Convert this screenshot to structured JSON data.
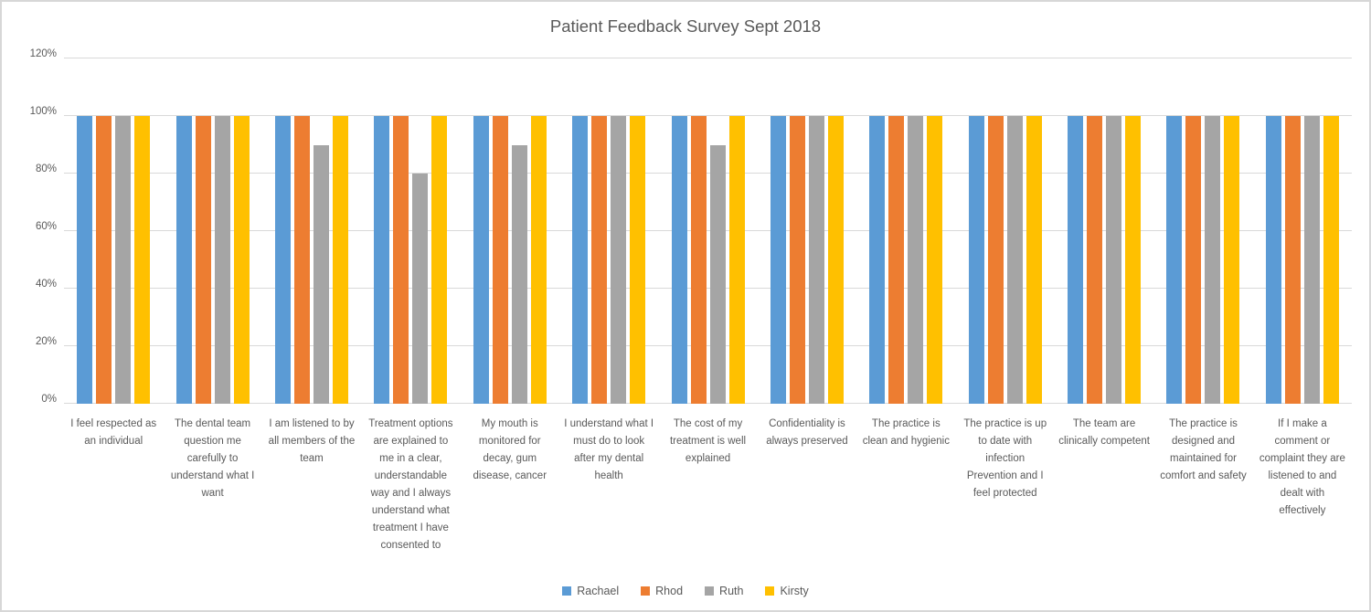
{
  "title": "Patient Feedback Survey Sept 2018",
  "colors": {
    "text": "#595959",
    "gridline": "#d9d9d9",
    "border": "#d7d7d7",
    "background": "#ffffff"
  },
  "chart_data": {
    "type": "bar",
    "title": "Patient Feedback Survey Sept 2018",
    "categories": [
      "I feel respected as an individual",
      "The dental team question me carefully to understand what I want",
      "I am listened to by all members of the team",
      "Treatment options are explained to me in a clear, understandable way and I always understand what treatment I have consented to",
      "My mouth is monitored for decay, gum disease, cancer",
      "I understand what I must do to look after my dental health",
      "The cost of my treatment is well explained",
      "Confidentiality is always preserved",
      "The practice is clean and hygienic",
      "The practice is up to date with infection Prevention and I feel protected",
      "The team are clinically competent",
      "The practice is designed and maintained for comfort and safety",
      "If I make a comment or complaint they are listened to and dealt with effectively"
    ],
    "series": [
      {
        "name": "Rachael",
        "color": "#5B9BD5",
        "values": [
          100,
          100,
          100,
          100,
          100,
          100,
          100,
          100,
          100,
          100,
          100,
          100,
          100
        ]
      },
      {
        "name": "Rhod",
        "color": "#ED7D31",
        "values": [
          100,
          100,
          100,
          100,
          100,
          100,
          100,
          100,
          100,
          100,
          100,
          100,
          100
        ]
      },
      {
        "name": "Ruth",
        "color": "#A5A5A5",
        "values": [
          100,
          100,
          90,
          80,
          90,
          100,
          90,
          100,
          100,
          100,
          100,
          100,
          100
        ]
      },
      {
        "name": "Kirsty",
        "color": "#FFC000",
        "values": [
          100,
          100,
          100,
          100,
          100,
          100,
          100,
          100,
          100,
          100,
          100,
          100,
          100
        ]
      }
    ],
    "y_axis": {
      "tick_labels": [
        "0%",
        "20%",
        "40%",
        "60%",
        "80%",
        "100%",
        "120%"
      ],
      "tick_values": [
        0,
        20,
        40,
        60,
        80,
        100,
        120
      ],
      "min": 0,
      "max": 120,
      "step": 20
    },
    "grid": true,
    "legend_position": "bottom"
  }
}
